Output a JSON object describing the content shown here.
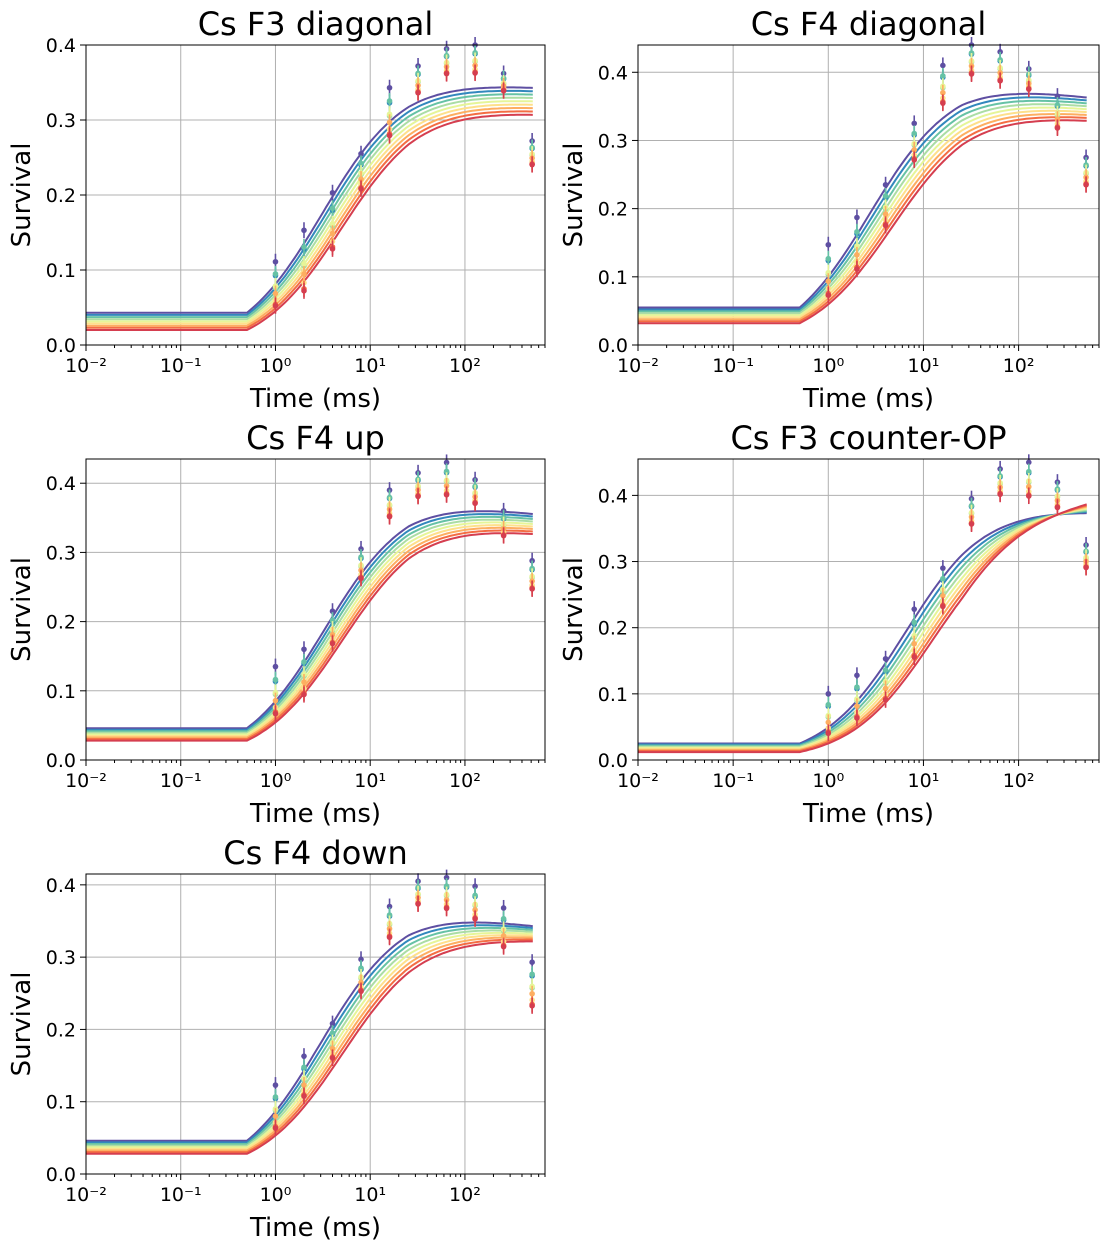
{
  "figure": {
    "colors": [
      "#5e4fa2",
      "#3288bd",
      "#66c2a5",
      "#abdda4",
      "#e6f598",
      "#fee08b",
      "#fdae61",
      "#f46d43",
      "#d53e4f"
    ]
  },
  "chart_data": [
    {
      "type": "scatter",
      "title": "Cs F3 diagonal",
      "xlabel": "Time (ms)",
      "ylabel": "Survival",
      "xscale": "log",
      "xlim": [
        0.01,
        700
      ],
      "ylim": [
        0,
        0.4
      ],
      "xticks": [
        "10⁻²",
        "10⁻¹",
        "10⁰",
        "10¹",
        "10²"
      ],
      "yticks": [
        "0.0",
        "0.1",
        "0.2",
        "0.3",
        "0.4"
      ],
      "grid": true,
      "x": [
        1,
        2,
        4,
        8,
        16,
        32,
        64,
        128,
        256,
        512
      ],
      "series_count": 9,
      "points_upper": [
        0.111,
        0.153,
        0.203,
        0.255,
        0.343,
        0.372,
        0.395,
        0.4,
        0.362,
        0.272
      ],
      "points_lower": [
        0.042,
        0.058,
        0.115,
        0.2,
        0.268,
        0.33,
        0.356,
        0.356,
        0.335,
        0.235
      ],
      "fit_baseline": [
        0.043,
        0.02
      ],
      "fit_plateau": [
        0.357,
        0.322
      ],
      "fit_tail": [
        0.345,
        0.31
      ],
      "fit_mid": [
        3.6,
        5.5
      ]
    },
    {
      "type": "scatter",
      "title": "Cs F4 diagonal",
      "xlabel": "Time (ms)",
      "ylabel": "Survival",
      "xscale": "log",
      "xlim": [
        0.01,
        700
      ],
      "ylim": [
        0,
        0.44
      ],
      "xticks": [
        "10⁻²",
        "10⁻¹",
        "10⁰",
        "10¹",
        "10²"
      ],
      "yticks": [
        "0.0",
        "0.1",
        "0.2",
        "0.3",
        "0.4"
      ],
      "grid": true,
      "x": [
        1,
        2,
        4,
        8,
        16,
        32,
        64,
        128,
        256,
        512
      ],
      "series_count": 9,
      "points_upper": [
        0.147,
        0.187,
        0.235,
        0.325,
        0.41,
        0.44,
        0.43,
        0.405,
        0.365,
        0.275
      ],
      "points_lower": [
        0.06,
        0.098,
        0.165,
        0.262,
        0.345,
        0.39,
        0.38,
        0.37,
        0.31,
        0.228
      ],
      "fit_baseline": [
        0.055,
        0.032
      ],
      "fit_plateau": [
        0.39,
        0.348
      ],
      "fit_tail": [
        0.365,
        0.332
      ],
      "fit_mid": [
        3.2,
        5.2
      ]
    },
    {
      "type": "scatter",
      "title": "Cs F4 up",
      "xlabel": "Time (ms)",
      "ylabel": "Survival",
      "xscale": "log",
      "xlim": [
        0.01,
        700
      ],
      "ylim": [
        0,
        0.435
      ],
      "xticks": [
        "10⁻²",
        "10⁻¹",
        "10⁰",
        "10¹",
        "10²"
      ],
      "yticks": [
        "0.0",
        "0.1",
        "0.2",
        "0.3",
        "0.4"
      ],
      "grid": true,
      "x": [
        1,
        2,
        4,
        8,
        16,
        32,
        64,
        128,
        256,
        512
      ],
      "series_count": 9,
      "points_upper": [
        0.135,
        0.16,
        0.215,
        0.305,
        0.39,
        0.415,
        0.43,
        0.405,
        0.36,
        0.288
      ],
      "points_lower": [
        0.055,
        0.083,
        0.16,
        0.255,
        0.345,
        0.375,
        0.375,
        0.365,
        0.318,
        0.24
      ],
      "fit_baseline": [
        0.046,
        0.028
      ],
      "fit_plateau": [
        0.382,
        0.35
      ],
      "fit_tail": [
        0.358,
        0.33
      ],
      "fit_mid": [
        3.8,
        5.6
      ]
    },
    {
      "type": "scatter",
      "title": "Cs F3 counter-OP",
      "xlabel": "Time (ms)",
      "ylabel": "Survival",
      "xscale": "log",
      "xlim": [
        0.01,
        700
      ],
      "ylim": [
        0,
        0.455
      ],
      "xticks": [
        "10⁻²",
        "10⁻¹",
        "10⁰",
        "10¹",
        "10²"
      ],
      "yticks": [
        "0.0",
        "0.1",
        "0.2",
        "0.3",
        "0.4"
      ],
      "grid": true,
      "x": [
        1,
        2,
        4,
        8,
        16,
        32,
        64,
        128,
        256,
        512
      ],
      "series_count": 9,
      "points_upper": [
        0.1,
        0.128,
        0.153,
        0.228,
        0.29,
        0.395,
        0.44,
        0.45,
        0.42,
        0.325
      ],
      "points_lower": [
        0.03,
        0.052,
        0.08,
        0.143,
        0.222,
        0.35,
        0.395,
        0.39,
        0.375,
        0.285
      ],
      "fit_baseline": [
        0.025,
        0.012
      ],
      "fit_plateau": [
        0.39,
        0.365
      ],
      "fit_tail": [
        0.378,
        0.395
      ],
      "fit_mid": [
        7.0,
        13.0
      ]
    },
    {
      "type": "scatter",
      "title": "Cs F4 down",
      "xlabel": "Time (ms)",
      "ylabel": "Survival",
      "xscale": "log",
      "xlim": [
        0.01,
        700
      ],
      "ylim": [
        0,
        0.415
      ],
      "xticks": [
        "10⁻²",
        "10⁻¹",
        "10⁰",
        "10¹",
        "10²"
      ],
      "yticks": [
        "0.0",
        "0.1",
        "0.2",
        "0.3",
        "0.4"
      ],
      "grid": true,
      "x": [
        1,
        2,
        4,
        8,
        16,
        32,
        64,
        128,
        256,
        512
      ],
      "series_count": 9,
      "points_upper": [
        0.123,
        0.163,
        0.208,
        0.297,
        0.37,
        0.405,
        0.41,
        0.398,
        0.368,
        0.293
      ],
      "points_lower": [
        0.053,
        0.098,
        0.152,
        0.245,
        0.32,
        0.368,
        0.36,
        0.345,
        0.305,
        0.222
      ],
      "fit_baseline": [
        0.046,
        0.028
      ],
      "fit_plateau": [
        0.37,
        0.335
      ],
      "fit_tail": [
        0.345,
        0.325
      ],
      "fit_mid": [
        3.5,
        5.6
      ]
    }
  ]
}
